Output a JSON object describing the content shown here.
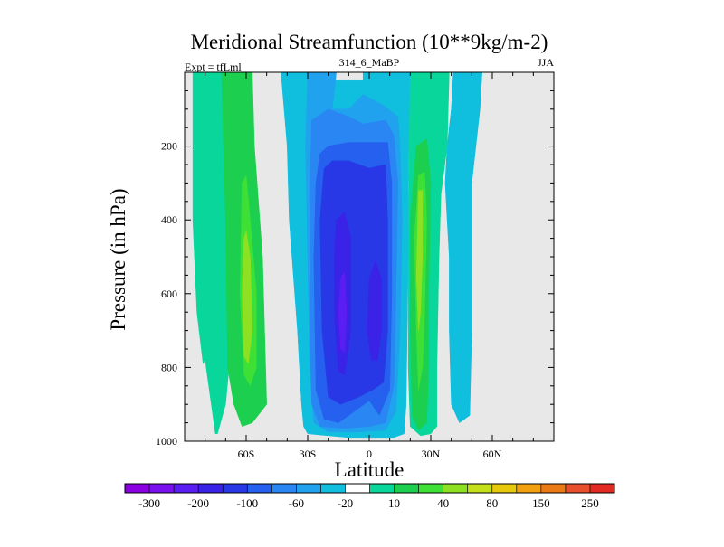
{
  "chart_data": {
    "type": "heatmap",
    "title": "Meridional Streamfunction (10**9kg/m-2)",
    "left_label": "Expt = tfLml",
    "center_label": "314_6_MaBP",
    "right_label": "JJA",
    "xlabel": "Latitude",
    "ylabel": "Pressure (in hPa)",
    "xlim": [
      -90,
      90
    ],
    "ylim": [
      1000,
      0
    ],
    "x_ticks": [
      {
        "value": -60,
        "label": "60S"
      },
      {
        "value": -30,
        "label": "30S"
      },
      {
        "value": 0,
        "label": "0"
      },
      {
        "value": 30,
        "label": "30N"
      },
      {
        "value": 60,
        "label": "60N"
      }
    ],
    "y_ticks": [
      {
        "value": 200,
        "label": "200"
      },
      {
        "value": 400,
        "label": "400"
      },
      {
        "value": 600,
        "label": "600"
      },
      {
        "value": 800,
        "label": "800"
      },
      {
        "value": 1000,
        "label": "1000"
      }
    ],
    "background_color": "#e8e8e8",
    "colorbar": {
      "colors": [
        "#8a00e0",
        "#7a10ee",
        "#5a1ef2",
        "#3a22e6",
        "#2838e6",
        "#2660ee",
        "#2a86f2",
        "#20a2ee",
        "#10bede",
        "#ffffff",
        "#08d69a",
        "#1ccf4e",
        "#3ee036",
        "#8ee022",
        "#c4e01a",
        "#e8c80a",
        "#f2a010",
        "#ec7a14",
        "#e8502c",
        "#e22a22"
      ],
      "labels": [
        {
          "index": 1,
          "label": "-300"
        },
        {
          "index": 3,
          "label": "-200"
        },
        {
          "index": 5,
          "label": "-100"
        },
        {
          "index": 7,
          "label": "-60"
        },
        {
          "index": 9,
          "label": "-20"
        },
        {
          "index": 11,
          "label": "10"
        },
        {
          "index": 13,
          "label": "40"
        },
        {
          "index": 15,
          "label": "80"
        },
        {
          "index": 17,
          "label": "150"
        },
        {
          "index": 19,
          "label": "250"
        }
      ]
    },
    "contours": [
      {
        "level": "10",
        "color": "#08d69a",
        "points": [
          [
            -78,
            0
          ],
          [
            -66,
            0
          ],
          [
            -66,
            200
          ],
          [
            -65,
            600
          ],
          [
            -70,
            900
          ],
          [
            -74,
            980
          ],
          [
            -75,
            980
          ],
          [
            -80,
            780
          ],
          [
            -81,
            790
          ],
          [
            -84,
            650
          ],
          [
            -86,
            400
          ],
          [
            -86,
            0
          ]
        ]
      },
      {
        "level": "20",
        "color": "#1ccf4e",
        "points": [
          [
            -72,
            0
          ],
          [
            -57,
            0
          ],
          [
            -56,
            200
          ],
          [
            -52,
            500
          ],
          [
            -50,
            900
          ],
          [
            -57,
            950
          ],
          [
            -62,
            960
          ],
          [
            -66,
            900
          ],
          [
            -69,
            800
          ],
          [
            -70,
            400
          ],
          [
            -71,
            200
          ]
        ]
      },
      {
        "level": "30",
        "color": "#3ee036",
        "points": [
          [
            -62,
            300
          ],
          [
            -60,
            280
          ],
          [
            -58,
            400
          ],
          [
            -55,
            600
          ],
          [
            -55,
            800
          ],
          [
            -58,
            850
          ],
          [
            -61,
            820
          ],
          [
            -63,
            600
          ]
        ]
      },
      {
        "level": "40",
        "color": "#8ee022",
        "points": [
          [
            -61,
            450
          ],
          [
            -60,
            430
          ],
          [
            -58,
            500
          ],
          [
            -57,
            700
          ],
          [
            -59,
            790
          ],
          [
            -61,
            770
          ],
          [
            -62,
            600
          ]
        ]
      },
      {
        "level": "-10",
        "color": "#10bede",
        "points": [
          [
            -43,
            0
          ],
          [
            -17,
            0
          ],
          [
            -17,
            20
          ],
          [
            -3,
            20
          ],
          [
            -3,
            0
          ],
          [
            20,
            0
          ],
          [
            19,
            300
          ],
          [
            19,
            500
          ],
          [
            18,
            900
          ],
          [
            17,
            980
          ],
          [
            12,
            990
          ],
          [
            0,
            990
          ],
          [
            -10,
            990
          ],
          [
            -20,
            985
          ],
          [
            -30,
            980
          ],
          [
            -32,
            960
          ],
          [
            -33,
            900
          ],
          [
            -35,
            700
          ],
          [
            -39,
            400
          ],
          [
            -40,
            200
          ]
        ]
      },
      {
        "level": "-20",
        "color": "#20a2ee",
        "points": [
          [
            -30,
            0
          ],
          [
            -16,
            0
          ],
          [
            -18,
            100
          ],
          [
            -10,
            100
          ],
          [
            -3,
            60
          ],
          [
            7,
            90
          ],
          [
            14,
            120
          ],
          [
            15,
            200
          ],
          [
            16,
            400
          ],
          [
            15,
            700
          ],
          [
            13,
            920
          ],
          [
            8,
            970
          ],
          [
            -5,
            975
          ],
          [
            -20,
            975
          ],
          [
            -27,
            950
          ],
          [
            -29,
            800
          ],
          [
            -30,
            500
          ],
          [
            -31,
            200
          ]
        ]
      },
      {
        "level": "-40",
        "color": "#2a86f2",
        "points": [
          [
            -28,
            130
          ],
          [
            -20,
            100
          ],
          [
            -10,
            120
          ],
          [
            -3,
            140
          ],
          [
            8,
            130
          ],
          [
            12,
            170
          ],
          [
            14,
            300
          ],
          [
            13,
            600
          ],
          [
            12,
            850
          ],
          [
            8,
            950
          ],
          [
            0,
            960
          ],
          [
            -12,
            965
          ],
          [
            -24,
            960
          ],
          [
            -28,
            900
          ],
          [
            -29,
            700
          ],
          [
            -29,
            300
          ]
        ]
      },
      {
        "level": "-60",
        "color": "#2660ee",
        "points": [
          [
            -24,
            220
          ],
          [
            -20,
            200
          ],
          [
            -10,
            190
          ],
          [
            0,
            190
          ],
          [
            9,
            190
          ],
          [
            11,
            300
          ],
          [
            11,
            600
          ],
          [
            10,
            860
          ],
          [
            5,
            930
          ],
          [
            0,
            890
          ],
          [
            -5,
            910
          ],
          [
            -15,
            950
          ],
          [
            -22,
            940
          ],
          [
            -26,
            860
          ],
          [
            -27,
            500
          ],
          [
            -26,
            300
          ]
        ]
      },
      {
        "level": "-80",
        "color": "#2838e6",
        "points": [
          [
            -22,
            260
          ],
          [
            -18,
            240
          ],
          [
            -10,
            240
          ],
          [
            0,
            260
          ],
          [
            8,
            250
          ],
          [
            9,
            400
          ],
          [
            9,
            700
          ],
          [
            7,
            840
          ],
          [
            2,
            860
          ],
          [
            -5,
            880
          ],
          [
            -14,
            900
          ],
          [
            -20,
            880
          ],
          [
            -23,
            700
          ],
          [
            -24,
            400
          ]
        ]
      },
      {
        "level": "-100",
        "color": "#3a22e6",
        "points": [
          [
            -16,
            400
          ],
          [
            -12,
            380
          ],
          [
            -9,
            450
          ],
          [
            -9,
            700
          ],
          [
            -12,
            820
          ],
          [
            -15,
            810
          ],
          [
            -17,
            650
          ],
          [
            -17,
            500
          ]
        ]
      },
      {
        "level": "-100",
        "color": "#3a22e6",
        "points": [
          [
            0,
            560
          ],
          [
            3,
            510
          ],
          [
            6,
            560
          ],
          [
            6,
            700
          ],
          [
            4,
            780
          ],
          [
            1,
            780
          ],
          [
            -1,
            700
          ]
        ]
      },
      {
        "level": "-150",
        "color": "#5a1ef2",
        "points": [
          [
            -14,
            560
          ],
          [
            -12,
            540
          ],
          [
            -11,
            650
          ],
          [
            -12,
            760
          ],
          [
            -14,
            750
          ],
          [
            -15,
            650
          ]
        ]
      },
      {
        "level": "-10",
        "color": "#10bede",
        "points": [
          [
            41,
            0
          ],
          [
            55,
            0
          ],
          [
            54,
            100
          ],
          [
            50,
            300
          ],
          [
            50,
            700
          ],
          [
            49,
            930
          ],
          [
            44,
            950
          ],
          [
            40,
            900
          ],
          [
            39,
            700
          ],
          [
            39,
            500
          ],
          [
            38,
            400
          ],
          [
            37,
            300
          ],
          [
            38,
            200
          ],
          [
            40,
            100
          ]
        ]
      },
      {
        "level": "10",
        "color": "#08d69a",
        "points": [
          [
            20,
            0
          ],
          [
            39,
            0
          ],
          [
            38,
            200
          ],
          [
            35,
            330
          ],
          [
            34,
            500
          ],
          [
            33,
            800
          ],
          [
            33,
            960
          ],
          [
            30,
            980
          ],
          [
            25,
            985
          ],
          [
            20,
            960
          ],
          [
            19,
            800
          ],
          [
            19,
            400
          ]
        ]
      },
      {
        "level": "20",
        "color": "#1ccf4e",
        "points": [
          [
            23,
            200
          ],
          [
            28,
            180
          ],
          [
            30,
            300
          ],
          [
            29,
            600
          ],
          [
            29,
            800
          ],
          [
            28,
            950
          ],
          [
            24,
            970
          ],
          [
            21,
            930
          ],
          [
            20,
            700
          ],
          [
            20,
            400
          ]
        ]
      },
      {
        "level": "30",
        "color": "#3ee036",
        "points": [
          [
            24,
            280
          ],
          [
            27,
            270
          ],
          [
            28,
            400
          ],
          [
            27,
            650
          ],
          [
            26,
            800
          ],
          [
            24,
            860
          ],
          [
            23,
            700
          ],
          [
            22,
            450
          ]
        ]
      },
      {
        "level": "40",
        "color": "#8ee022",
        "points": [
          [
            24,
            320
          ],
          [
            26,
            320
          ],
          [
            26,
            500
          ],
          [
            25,
            650
          ],
          [
            24,
            700
          ],
          [
            23,
            550
          ]
        ]
      }
    ]
  }
}
